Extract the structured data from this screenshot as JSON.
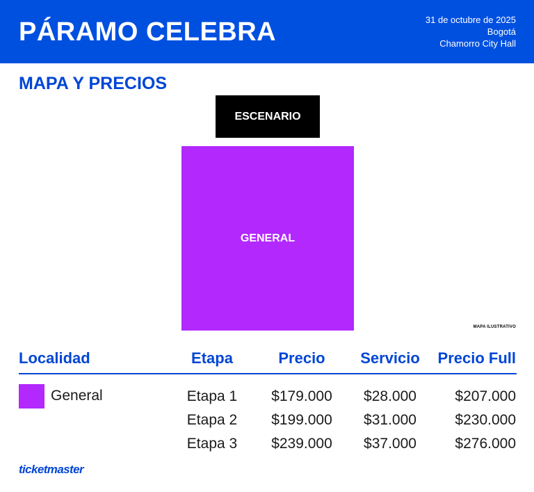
{
  "header": {
    "title": "PÁRAMO CELEBRA",
    "date": "31 de octubre de 2025",
    "city": "Bogotá",
    "venue": "Chamorro City Hall"
  },
  "map": {
    "section_title": "MAPA Y PRECIOS",
    "stage_label": "ESCENARIO",
    "zone_label": "GENERAL",
    "note": "MAPA ILUSTRATIVO",
    "zone_color": "#b228fd"
  },
  "table": {
    "headers": {
      "localidad": "Localidad",
      "etapa": "Etapa",
      "precio": "Precio",
      "servicio": "Servicio",
      "precio_full": "Precio Full"
    },
    "locality": "General",
    "rows": [
      {
        "etapa": "Etapa 1",
        "precio": "$179.000",
        "servicio": "$28.000",
        "full": "$207.000"
      },
      {
        "etapa": "Etapa 2",
        "precio": "$199.000",
        "servicio": "$31.000",
        "full": "$230.000"
      },
      {
        "etapa": "Etapa 3",
        "precio": "$239.000",
        "servicio": "$37.000",
        "full": "$276.000"
      }
    ]
  },
  "footer": {
    "brand": "ticketmaster"
  },
  "colors": {
    "header_bg": "#0050e0",
    "accent_blue": "#0046d5",
    "zone_purple": "#b228fd"
  }
}
